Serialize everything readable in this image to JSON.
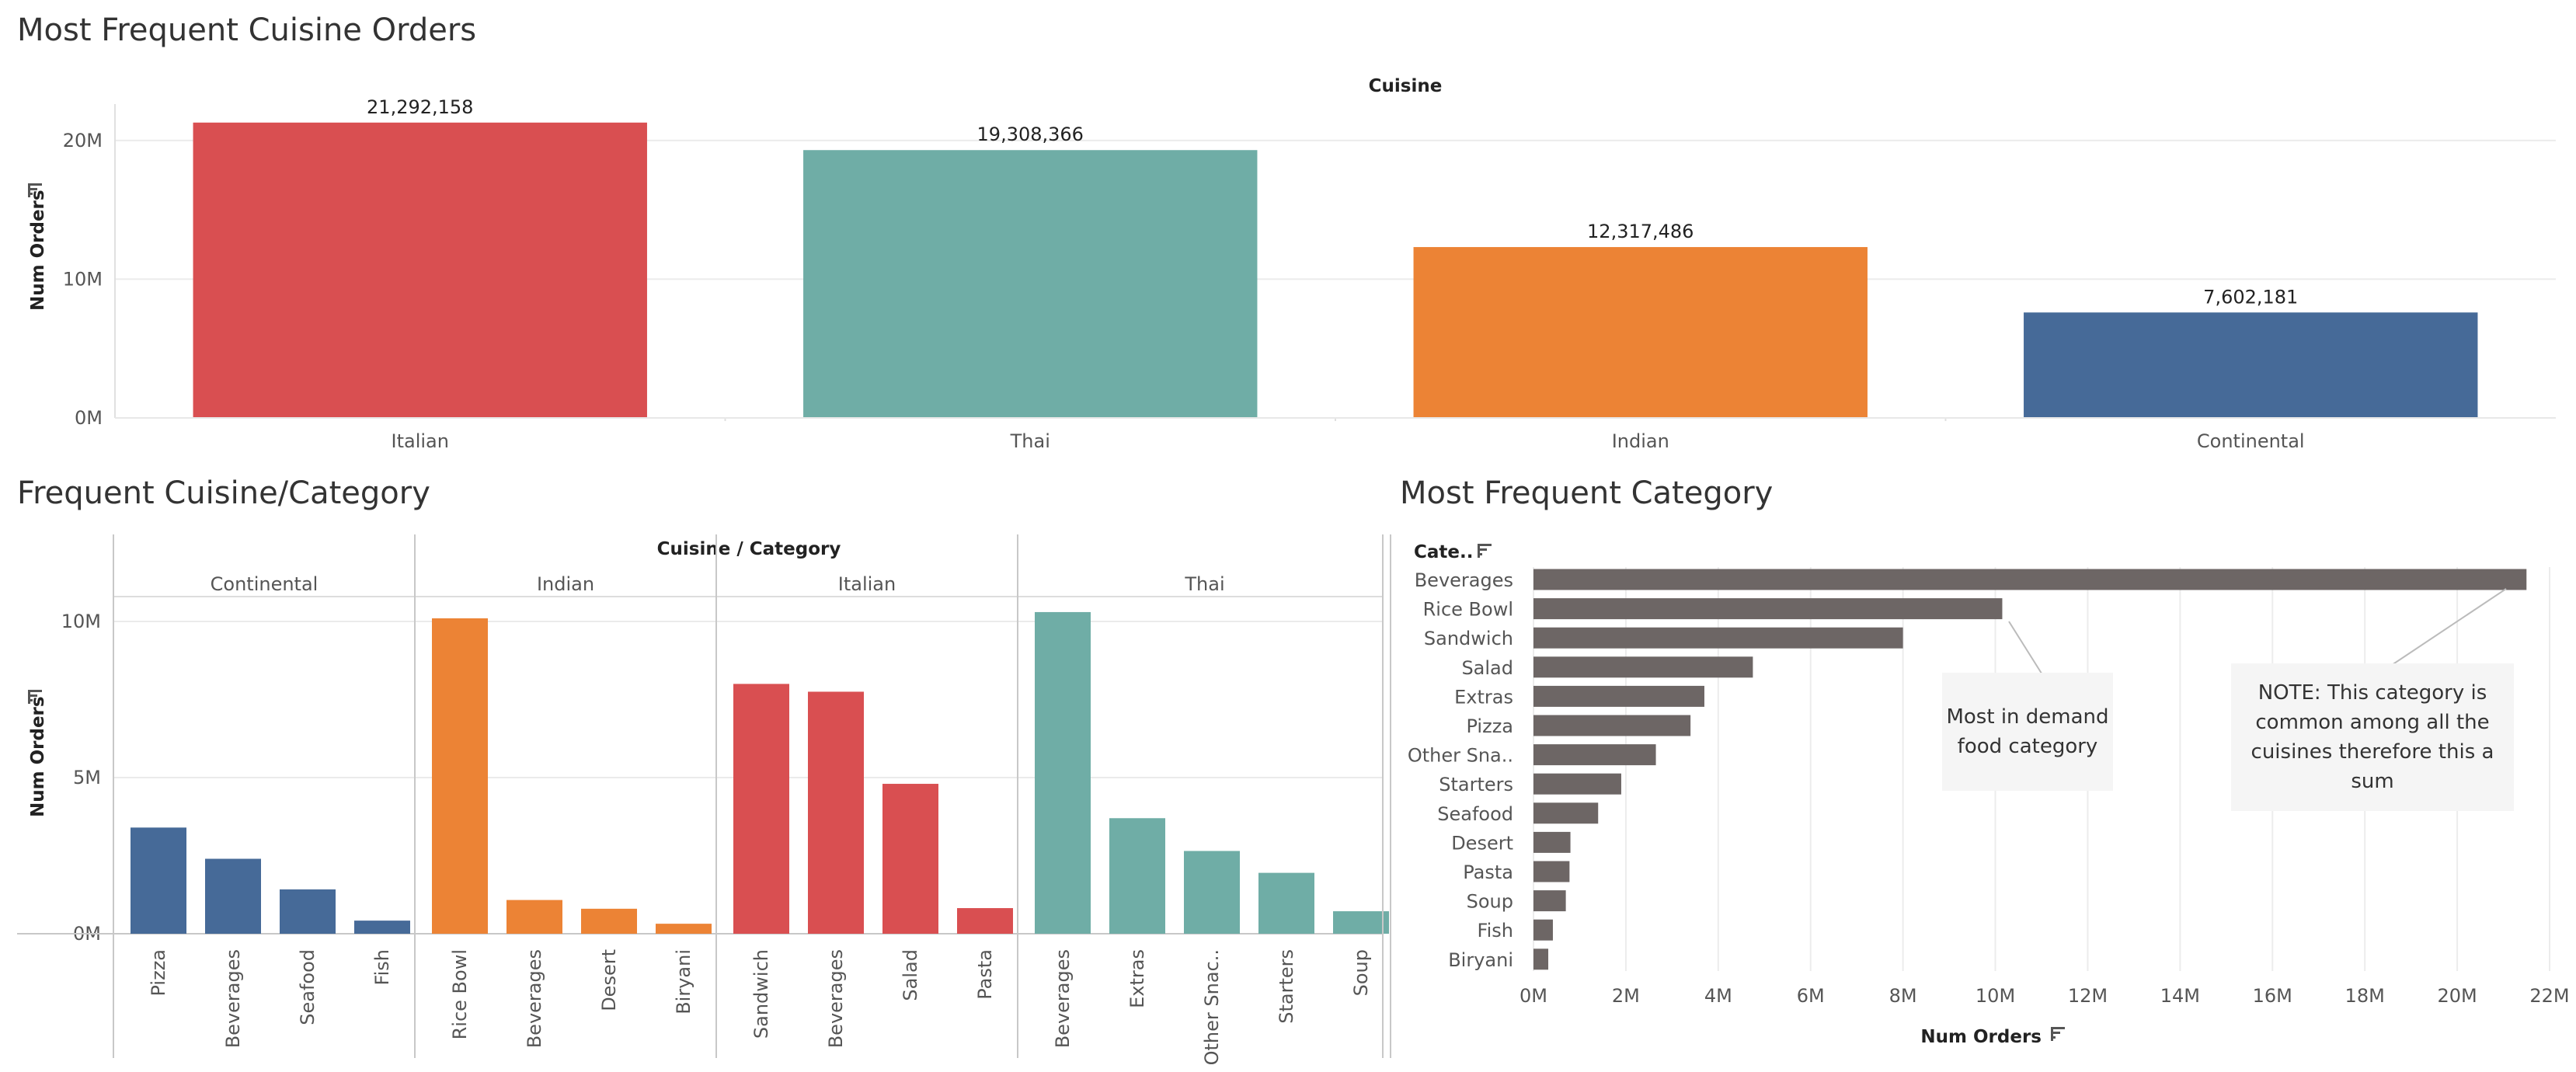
{
  "titles": {
    "top": "Most Frequent Cuisine Orders",
    "bottom_left": "Frequent Cuisine/Category",
    "bottom_right": "Most Frequent Category"
  },
  "icons": {
    "sort": "sort-icon"
  },
  "colors": {
    "Italian": "#d94f51",
    "Thai": "#6fada6",
    "Indian": "#ec8335",
    "Continental": "#466a98",
    "category_bar": "#6d6665"
  },
  "annotations": {
    "demand_note": "Most in demand food category",
    "common_note": "NOTE: This category is common among all the cuisines therefore this a sum"
  },
  "chart_data": [
    {
      "type": "bar",
      "title": "Most Frequent Cuisine Orders",
      "header": "Cuisine",
      "xlabel": "",
      "ylabel": "Num Orders",
      "categories": [
        "Italian",
        "Thai",
        "Indian",
        "Continental"
      ],
      "values": [
        21292158,
        19308366,
        12317486,
        7602181
      ],
      "value_labels": [
        "21,292,158",
        "19,308,366",
        "12,317,486",
        "7,602,181"
      ],
      "ylim": [
        0,
        24000000
      ],
      "y_ticks": [
        0,
        10000000,
        20000000
      ],
      "y_tick_labels": [
        "0M",
        "10M",
        "20M"
      ],
      "grid": true
    },
    {
      "type": "bar",
      "title": "Frequent Cuisine/Category",
      "header": "Cuisine / Category",
      "ylabel": "Num Orders",
      "ylim": [
        0,
        11000000
      ],
      "y_ticks": [
        0,
        5000000,
        10000000
      ],
      "y_tick_labels": [
        "0M",
        "5M",
        "10M"
      ],
      "grid": true,
      "groups": [
        {
          "name": "Continental",
          "categories": [
            "Pizza",
            "Beverages",
            "Seafood",
            "Fish"
          ],
          "values": [
            3400000,
            2400000,
            1420000,
            420000
          ]
        },
        {
          "name": "Indian",
          "categories": [
            "Rice Bowl",
            "Beverages",
            "Desert",
            "Biryani"
          ],
          "values": [
            10100000,
            1080000,
            800000,
            320000
          ]
        },
        {
          "name": "Italian",
          "categories": [
            "Sandwich",
            "Beverages",
            "Salad",
            "Pasta"
          ],
          "values": [
            8000000,
            7750000,
            4800000,
            820000
          ]
        },
        {
          "name": "Thai",
          "categories": [
            "Beverages",
            "Extras",
            "Other Snac..",
            "Starters",
            "Soup"
          ],
          "values": [
            10300000,
            3700000,
            2650000,
            1950000,
            720000
          ]
        }
      ]
    },
    {
      "type": "bar",
      "orientation": "horizontal",
      "title": "Most Frequent Category",
      "ylabel": "Cate..",
      "xlabel": "Num Orders",
      "categories": [
        "Beverages",
        "Rice Bowl",
        "Sandwich",
        "Salad",
        "Extras",
        "Pizza",
        "Other Sna..",
        "Starters",
        "Seafood",
        "Desert",
        "Pasta",
        "Soup",
        "Fish",
        "Biryani"
      ],
      "values": [
        21500000,
        10150000,
        8000000,
        4750000,
        3700000,
        3400000,
        2650000,
        1900000,
        1400000,
        800000,
        780000,
        700000,
        420000,
        320000
      ],
      "xlim": [
        0,
        22000000
      ],
      "x_ticks": [
        0,
        2000000,
        4000000,
        6000000,
        8000000,
        10000000,
        12000000,
        14000000,
        16000000,
        18000000,
        20000000,
        22000000
      ],
      "x_tick_labels": [
        "0M",
        "2M",
        "4M",
        "6M",
        "8M",
        "10M",
        "12M",
        "14M",
        "16M",
        "18M",
        "20M",
        "22M"
      ],
      "grid": true
    }
  ]
}
